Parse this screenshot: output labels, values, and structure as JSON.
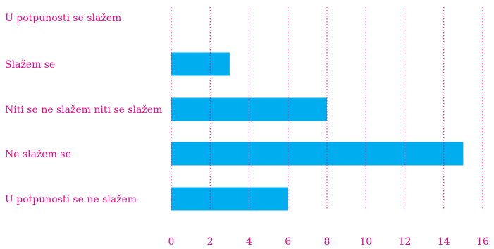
{
  "chart_data": {
    "type": "bar",
    "orientation": "horizontal",
    "categories": [
      "U potpunosti se slažem",
      "Slažem se",
      "Niti se ne slažem niti se slažem",
      "Ne slažem se",
      "U potpunosti se ne slažem"
    ],
    "values": [
      0,
      3,
      8,
      15,
      6
    ],
    "xlim": [
      0,
      16
    ],
    "xticks": [
      "0",
      "2",
      "4",
      "6",
      "8",
      "10",
      "12",
      "14",
      "16"
    ],
    "grid": true,
    "title": "",
    "xlabel": "",
    "ylabel": "",
    "colors": {
      "bar": "#00aeef",
      "text": "#e8088a",
      "grid": "#e8088a"
    }
  }
}
